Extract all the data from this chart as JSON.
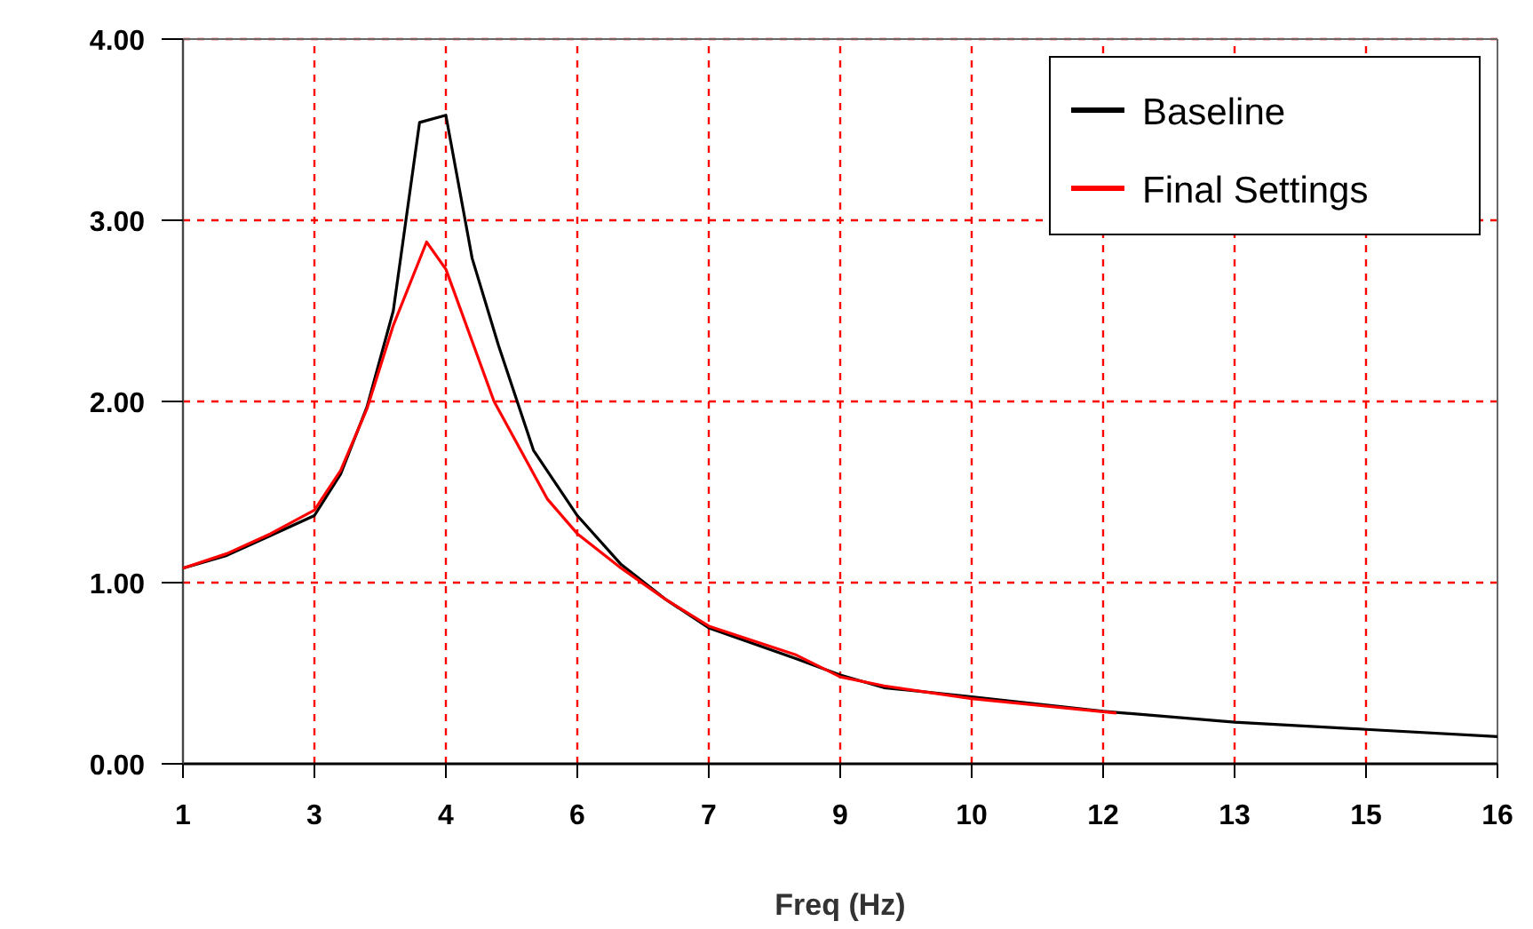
{
  "chart_data": {
    "type": "line",
    "xlabel": "Freq (Hz)",
    "xlim": [
      1,
      16
    ],
    "ylim": [
      0,
      4
    ],
    "xticks": [
      1,
      {
        "value": 2.5,
        "label": "3"
      },
      4,
      {
        "value": 5.5,
        "label": "6"
      },
      7,
      {
        "value": 8.5,
        "label": "9"
      },
      10,
      {
        "value": 11.5,
        "label": "12"
      },
      13,
      {
        "value": 14.5,
        "label": "15"
      },
      16
    ],
    "yticks": [
      {
        "value": 0,
        "label": "0.00"
      },
      {
        "value": 1,
        "label": "1.00"
      },
      {
        "value": 2,
        "label": "2.00"
      },
      {
        "value": 3,
        "label": "3.00"
      },
      {
        "value": 4,
        "label": "4.00"
      }
    ],
    "grid": true,
    "legend": "top right",
    "marker": "none",
    "line_style": "solid",
    "series": [
      {
        "name": "Baseline",
        "color": "#000000",
        "x": [
          1,
          1.5,
          2,
          2.5,
          2.8,
          3.1,
          3.4,
          3.7,
          4,
          4.3,
          4.6,
          5,
          5.5,
          6,
          6.5,
          7,
          8,
          8.5,
          9,
          10,
          11.5,
          13,
          14.5,
          16
        ],
        "values": [
          1.08,
          1.15,
          1.26,
          1.37,
          1.6,
          1.97,
          2.5,
          3.54,
          3.58,
          2.79,
          2.31,
          1.73,
          1.37,
          1.1,
          0.91,
          0.75,
          0.58,
          0.49,
          0.42,
          0.37,
          0.29,
          0.23,
          0.19,
          0.15
        ]
      },
      {
        "name": "Final Settings",
        "color": "#ff0000",
        "x": [
          1,
          1.5,
          2,
          2.5,
          2.8,
          3.1,
          3.4,
          3.78,
          4,
          4.55,
          5.16,
          5.5,
          6,
          6.5,
          7,
          8,
          8.5,
          9,
          10,
          11.65
        ],
        "values": [
          1.08,
          1.16,
          1.27,
          1.4,
          1.62,
          1.96,
          2.42,
          2.88,
          2.73,
          2.0,
          1.46,
          1.27,
          1.08,
          0.91,
          0.76,
          0.6,
          0.48,
          0.43,
          0.36,
          0.28
        ]
      }
    ]
  }
}
